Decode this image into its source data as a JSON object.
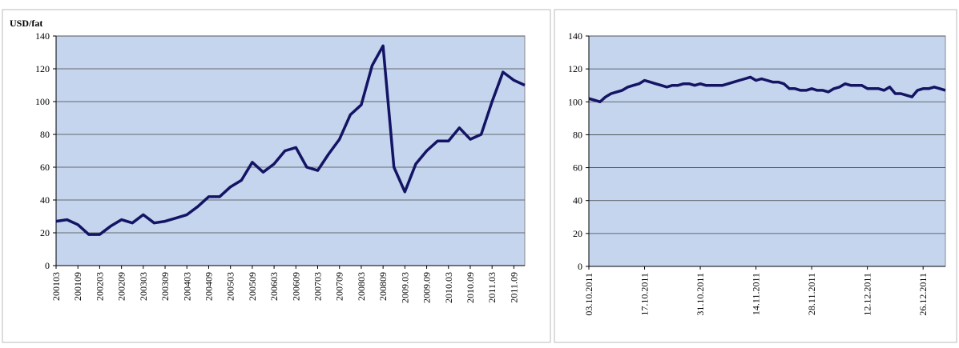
{
  "chart_data": [
    {
      "type": "line",
      "y_label": "USD/fat",
      "ylim": [
        0,
        140
      ],
      "yticks": [
        0,
        20,
        40,
        60,
        80,
        100,
        120,
        140
      ],
      "grid": true,
      "color": "#141464",
      "categories": [
        "200103",
        null,
        "200109",
        null,
        "200203",
        null,
        "200209",
        null,
        "200303",
        null,
        "200309",
        null,
        "200403",
        null,
        "200409",
        null,
        "200503",
        null,
        "200509",
        null,
        "200603",
        null,
        "200609",
        null,
        "200703",
        null,
        "200709",
        null,
        "200803",
        null,
        "200809",
        null,
        "2009.03",
        null,
        "2009.09",
        null,
        "2010.03",
        null,
        "2010.09",
        null,
        "2011.03",
        null,
        "2011.09",
        null
      ],
      "values": [
        27,
        28,
        25,
        19,
        19,
        24,
        28,
        26,
        31,
        26,
        27,
        29,
        31,
        36,
        42,
        42,
        48,
        52,
        63,
        57,
        62,
        70,
        72,
        60,
        58,
        68,
        77,
        92,
        98,
        122,
        134,
        60,
        45,
        62,
        70,
        76,
        76,
        84,
        77,
        80,
        100,
        118,
        113,
        110
      ]
    },
    {
      "type": "line",
      "ylim": [
        0,
        140
      ],
      "yticks": [
        0,
        20,
        40,
        60,
        80,
        100,
        120,
        140
      ],
      "grid": true,
      "color": "#141464",
      "categories": [
        "03.10.2011",
        null,
        null,
        null,
        null,
        null,
        null,
        null,
        null,
        null,
        "17.10.2011",
        null,
        null,
        null,
        null,
        null,
        null,
        null,
        null,
        null,
        "31.10.2011",
        null,
        null,
        null,
        null,
        null,
        null,
        null,
        null,
        null,
        "14.11.2011",
        null,
        null,
        null,
        null,
        null,
        null,
        null,
        null,
        null,
        "28.11.2011",
        null,
        null,
        null,
        null,
        null,
        null,
        null,
        null,
        null,
        "12.12.2011",
        null,
        null,
        null,
        null,
        null,
        null,
        null,
        null,
        null,
        "26.12.2011",
        null,
        null,
        null,
        null
      ],
      "values": [
        102,
        101,
        100,
        103,
        105,
        106,
        107,
        109,
        110,
        111,
        113,
        112,
        111,
        110,
        109,
        110,
        110,
        111,
        111,
        110,
        111,
        110,
        110,
        110,
        110,
        111,
        112,
        113,
        114,
        115,
        113,
        114,
        113,
        112,
        112,
        111,
        108,
        108,
        107,
        107,
        108,
        107,
        107,
        106,
        108,
        109,
        111,
        110,
        110,
        110,
        108,
        108,
        108,
        107,
        109,
        105,
        105,
        104,
        103,
        107,
        108,
        108,
        109,
        108,
        107
      ]
    }
  ]
}
